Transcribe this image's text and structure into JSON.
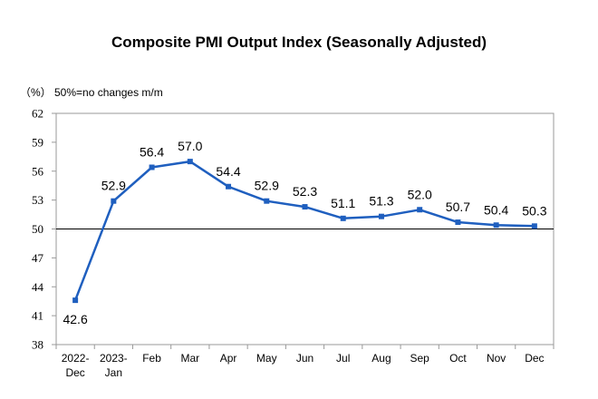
{
  "chart_data": {
    "type": "line",
    "title": "Composite PMI Output Index (Seasonally Adjusted)",
    "unit_label": "（%）",
    "note": "50%=no changes m/m",
    "categories": [
      [
        "2022-",
        "Dec"
      ],
      [
        "2023-",
        "Jan"
      ],
      [
        "Feb"
      ],
      [
        "Mar"
      ],
      [
        "Apr"
      ],
      [
        "May"
      ],
      [
        "Jun"
      ],
      [
        "Jul"
      ],
      [
        "Aug"
      ],
      [
        "Sep"
      ],
      [
        "Oct"
      ],
      [
        "Nov"
      ],
      [
        "Dec"
      ]
    ],
    "values": [
      42.6,
      52.9,
      56.4,
      57.0,
      54.4,
      52.9,
      52.3,
      51.1,
      51.3,
      52.0,
      50.7,
      50.4,
      50.3
    ],
    "value_labels": [
      "42.6",
      "52.9",
      "56.4",
      "57.0",
      "54.4",
      "52.9",
      "52.3",
      "51.1",
      "51.3",
      "52.0",
      "50.7",
      "50.4",
      "50.3"
    ],
    "ylim": [
      38,
      62
    ],
    "yticks": [
      "38",
      "41",
      "44",
      "47",
      "50",
      "53",
      "56",
      "59",
      "62"
    ],
    "reference_line": 50,
    "series_color": "#1F5FBF",
    "grid": false
  }
}
